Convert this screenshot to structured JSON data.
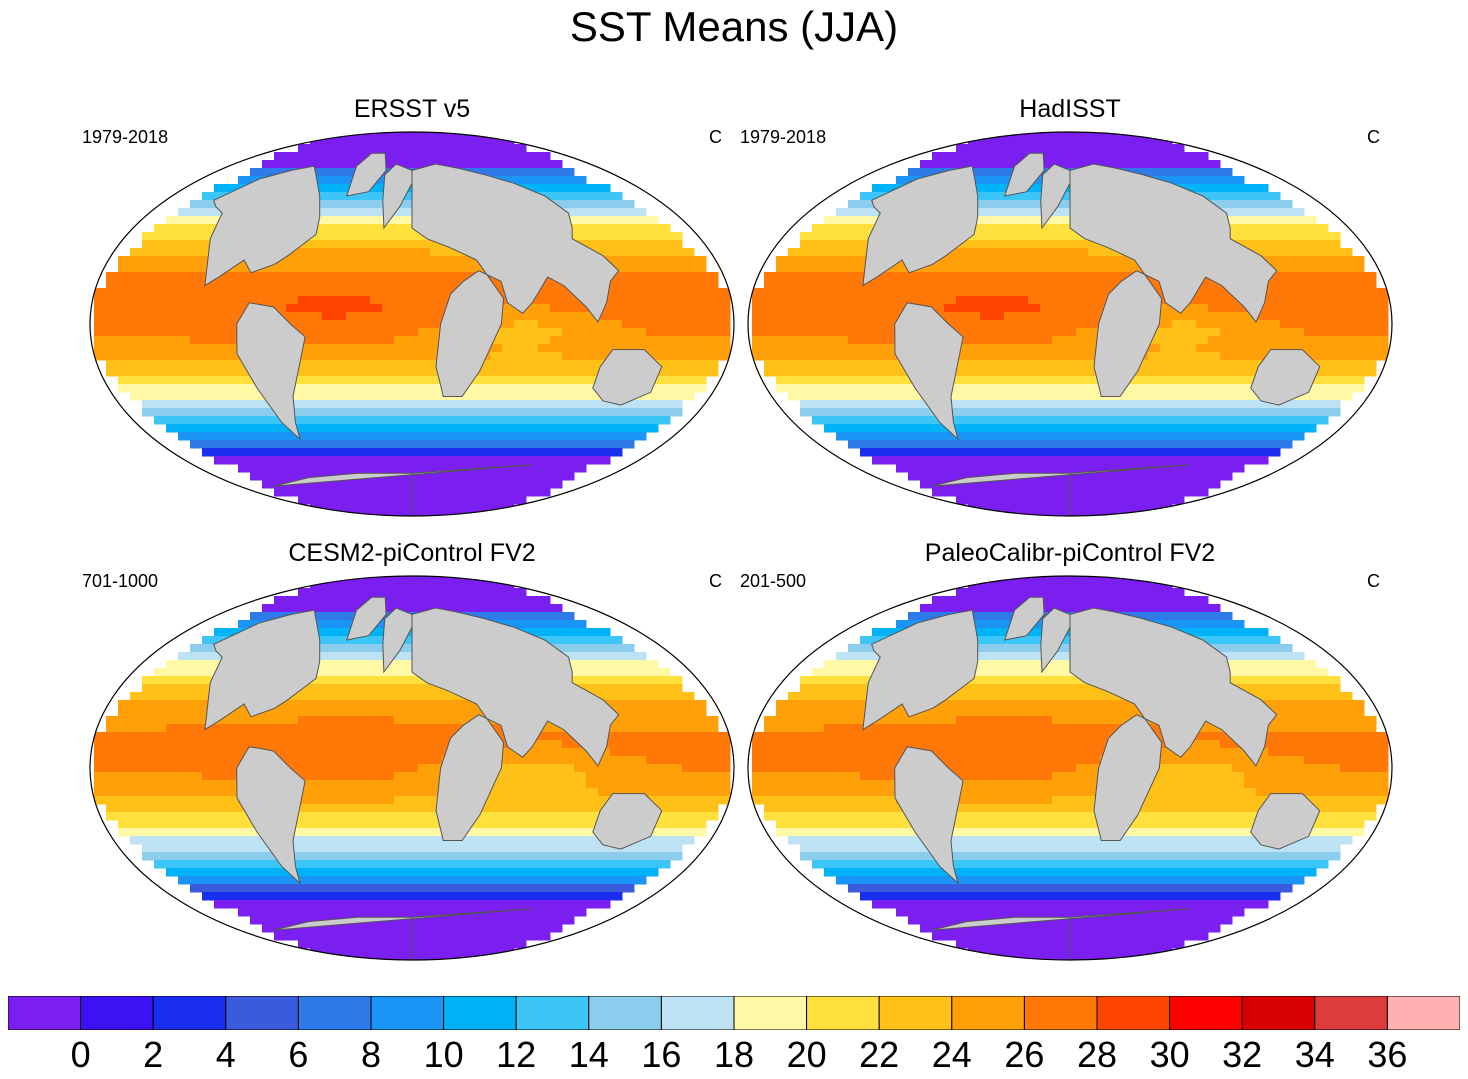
{
  "title": "SST Means (JJA)",
  "panels": [
    {
      "title": "ERSST v5",
      "period": "1979-2018",
      "units": "C"
    },
    {
      "title": "HadISST",
      "period": "1979-2018",
      "units": "C"
    },
    {
      "title": "CESM2-piControl FV2",
      "period": "701-1000",
      "units": "C"
    },
    {
      "title": "PaleoCalibr-piControl FV2",
      "period": "201-500",
      "units": "C"
    }
  ],
  "colorbar": {
    "levels": [
      0,
      2,
      4,
      6,
      8,
      10,
      12,
      14,
      16,
      18,
      20,
      22,
      24,
      26,
      28,
      30,
      32,
      34,
      36
    ],
    "labels": [
      "0",
      "2",
      "4",
      "6",
      "8",
      "10",
      "12",
      "14",
      "16",
      "18",
      "20",
      "22",
      "24",
      "26",
      "28",
      "30",
      "32",
      "34",
      "36"
    ],
    "colors": [
      "#7b1ff0",
      "#3c12f5",
      "#1a2ef0",
      "#3a5bdc",
      "#2e7ae8",
      "#1a94f5",
      "#00b2f8",
      "#3cc6f8",
      "#8ccdee",
      "#bde2f4",
      "#fff8a4",
      "#ffe03c",
      "#ffc018",
      "#ffa008",
      "#ff7808",
      "#ff4400",
      "#ff0000",
      "#d80000",
      "#dc3c3c",
      "#ffb0b0"
    ]
  },
  "land_color": "#cccccc",
  "missing_color": "#ffffff"
}
